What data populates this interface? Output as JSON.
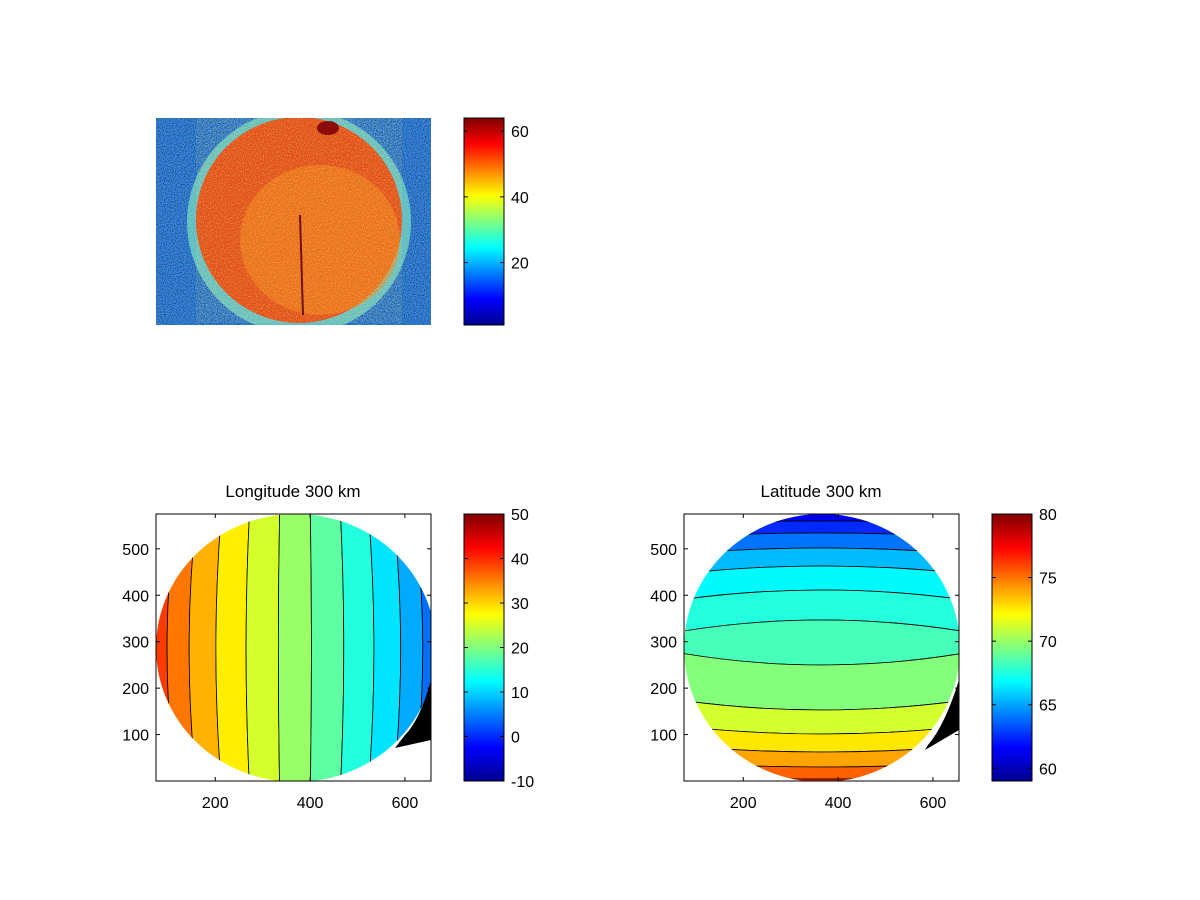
{
  "chart_data": [
    {
      "type": "heatmap",
      "title": "",
      "xlabel": "",
      "ylabel": "",
      "axes_ticks_visible": false,
      "content": "noisy image of a bright disk: values ~45-60 inside the disk, ~5-25 outside",
      "colormap": "jet",
      "colorbar": {
        "range": [
          1,
          64
        ],
        "ticks": [
          20,
          40,
          60
        ]
      }
    },
    {
      "type": "heatmap",
      "title": "Longitude 300 km",
      "xlabel": "",
      "ylabel": "",
      "xlim": [
        75,
        655
      ],
      "ylim": [
        0,
        575
      ],
      "xticks": [
        200,
        400,
        600
      ],
      "yticks": [
        100,
        200,
        300,
        400,
        500
      ],
      "colormap": "jet",
      "contour_lines": true,
      "colorbar": {
        "range": [
          -10,
          50
        ],
        "ticks": [
          50,
          40,
          30,
          20,
          10,
          0,
          -10
        ]
      }
    },
    {
      "type": "heatmap",
      "title": "Latitude 300 km",
      "xlabel": "",
      "ylabel": "",
      "xlim": [
        75,
        655
      ],
      "ylim": [
        0,
        575
      ],
      "xticks": [
        200,
        400,
        600
      ],
      "yticks": [
        100,
        200,
        300,
        400,
        500
      ],
      "colormap": "jet",
      "contour_lines": true,
      "colorbar": {
        "range": [
          59,
          80
        ],
        "ticks": [
          80,
          75,
          70,
          65,
          60
        ]
      }
    }
  ]
}
